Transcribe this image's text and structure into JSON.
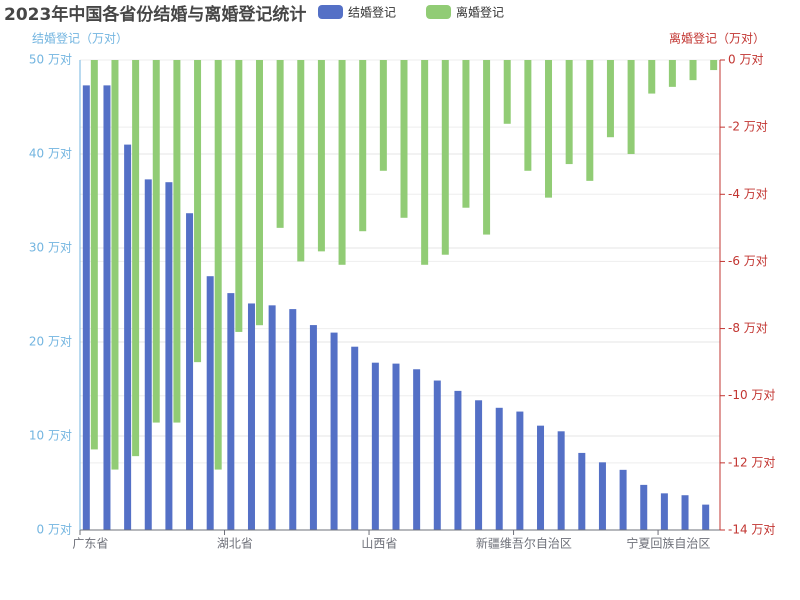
{
  "chart_data": {
    "type": "bar",
    "title": "2023年中国各省份结婚与离婚登记统计",
    "y_label": "结婚登记（万对）",
    "y2_label": "离婚登记（万对）",
    "categories": [
      "广东省",
      null,
      null,
      null,
      null,
      null,
      null,
      "湖北省",
      null,
      null,
      null,
      null,
      null,
      null,
      "山西省",
      null,
      null,
      null,
      null,
      null,
      null,
      "新疆维吾尔自治区",
      null,
      null,
      null,
      null,
      null,
      null,
      "宁夏回族自治区",
      null,
      null
    ],
    "series": [
      {
        "name": "结婚登记",
        "color": "#5470c6",
        "values": [
          47.3,
          47.3,
          41.0,
          37.3,
          37.0,
          33.7,
          27.0,
          25.2,
          24.1,
          23.9,
          23.5,
          21.8,
          21.0,
          19.5,
          17.8,
          17.7,
          17.1,
          15.9,
          14.8,
          13.8,
          13.0,
          12.6,
          11.1,
          10.5,
          8.2,
          7.2,
          6.4,
          4.8,
          3.9,
          3.7,
          2.7
        ]
      },
      {
        "name": "离婚登记",
        "color": "#91cc75",
        "axis": "y2",
        "values": [
          -11.6,
          -12.2,
          -11.8,
          -10.8,
          -10.8,
          -9.0,
          -12.2,
          -8.1,
          -7.9,
          -5.0,
          -6.0,
          -5.7,
          -6.1,
          -5.1,
          -3.3,
          -4.7,
          -6.1,
          -5.8,
          -4.4,
          -5.2,
          -1.9,
          -3.3,
          -4.1,
          -3.1,
          -3.6,
          -2.3,
          -2.8,
          -1.0,
          -0.8,
          -0.6,
          -0.3
        ]
      }
    ],
    "ylim": [
      0,
      50
    ],
    "yticks": [
      {
        "value": 0,
        "label": "0 万对"
      },
      {
        "value": 10,
        "label": "10 万对"
      },
      {
        "value": 20,
        "label": "20 万对"
      },
      {
        "value": 30,
        "label": "30 万对"
      },
      {
        "value": 40,
        "label": "40 万对"
      },
      {
        "value": 50,
        "label": "50 万对"
      }
    ],
    "y2lim": [
      -14,
      0
    ],
    "y2ticks": [
      {
        "value": 0,
        "label": "0 万对"
      },
      {
        "value": -2,
        "label": "-2 万对"
      },
      {
        "value": -4,
        "label": "-4 万对"
      },
      {
        "value": -6,
        "label": "-6 万对"
      },
      {
        "value": -8,
        "label": "-8 万对"
      },
      {
        "value": -10,
        "label": "-10 万对"
      },
      {
        "value": -12,
        "label": "-12 万对"
      },
      {
        "value": -14,
        "label": "-14 万对"
      }
    ],
    "y_color": "#73b5e0",
    "y2_color": "#c23531",
    "grid": true
  }
}
